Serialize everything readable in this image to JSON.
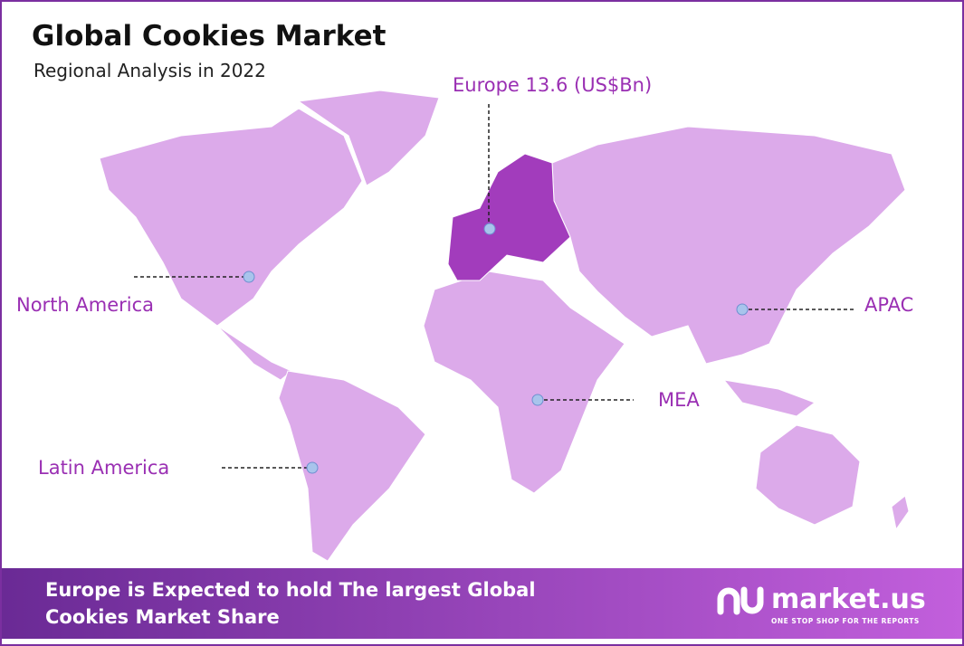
{
  "header": {
    "title": "Global Cookies Market",
    "subtitle": "Regional Analysis in 2022"
  },
  "highlight": {
    "name": "Europe",
    "value": 13.6,
    "unit": "(US$Bn)"
  },
  "regions": [
    "North America",
    "APAC",
    "MEA",
    "Latin America"
  ],
  "footer": {
    "line1": "Europe is Expected to hold The largest Global",
    "line2": "Cookies Market Share"
  },
  "logo": {
    "name": "market.us",
    "tagline": "ONE STOP SHOP FOR THE REPORTS"
  }
}
